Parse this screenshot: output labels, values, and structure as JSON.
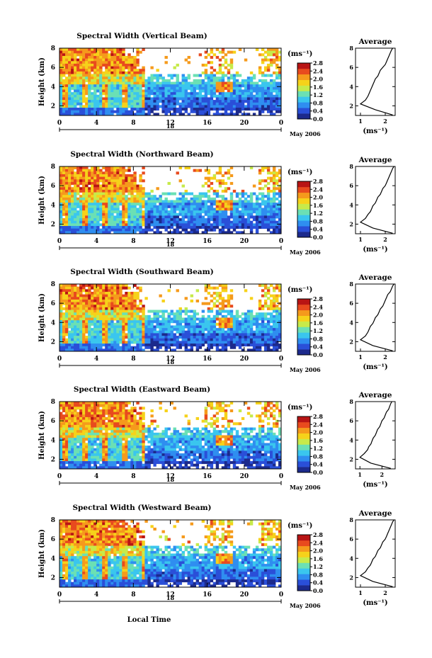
{
  "figure": {
    "xlabel": "Local Time",
    "colorbar_unit": "(ms⁻¹)",
    "avg_title": "Average",
    "avg_unit": "(ms⁻¹)",
    "date_label": "May 2006",
    "day_label": "18"
  },
  "colors": {
    "scale": [
      "#1c2a8c",
      "#2a4fd8",
      "#2f8ef0",
      "#3ac6ee",
      "#6be0b4",
      "#c7ea4a",
      "#f6d21a",
      "#f59a1c",
      "#e84a1e",
      "#b81414"
    ]
  },
  "chart_data": [
    {
      "type": "heatmap",
      "title": "Spectral Width (Vertical Beam)",
      "ylabel": "Height (km)",
      "x_ticks": [
        "0",
        "4",
        "8",
        "12",
        "16",
        "20",
        "0"
      ],
      "y_ticks": [
        "2",
        "4",
        "6",
        "8"
      ],
      "ylim": [
        1,
        8
      ],
      "colorbar_ticks": [
        "2.8",
        "2.4",
        "2.0",
        "1.6",
        "1.2",
        "0.8",
        "0.4",
        "0.0"
      ],
      "colorbar_range": [
        0,
        2.8
      ],
      "average": {
        "x_ticks": [
          "1",
          "2"
        ],
        "y_ticks": [
          "2",
          "4",
          "6",
          "8"
        ],
        "xlim": [
          0.8,
          2.4
        ],
        "ylim": [
          1,
          8
        ],
        "x": [
          2.3,
          1.6,
          1.0,
          1.2,
          1.3,
          1.35,
          1.4,
          1.45,
          1.5,
          1.55,
          1.6,
          1.7,
          1.75,
          1.8,
          1.9,
          2.0,
          2.05,
          2.1,
          2.15,
          2.2,
          2.25,
          2.3
        ],
        "y": [
          1.05,
          1.6,
          2.2,
          2.6,
          3.0,
          3.3,
          3.6,
          3.9,
          4.2,
          4.5,
          4.8,
          5.1,
          5.4,
          5.7,
          6.0,
          6.3,
          6.6,
          6.9,
          7.2,
          7.5,
          7.8,
          8.0
        ]
      }
    },
    {
      "type": "heatmap",
      "title": "Spectral Width (Northward Beam)",
      "ylabel": "Height (km)",
      "x_ticks": [
        "0",
        "4",
        "8",
        "12",
        "16",
        "20",
        "0"
      ],
      "y_ticks": [
        "2",
        "4",
        "6",
        "8"
      ],
      "ylim": [
        1,
        8
      ],
      "colorbar_ticks": [
        "2.8",
        "2.4",
        "2.0",
        "1.6",
        "1.2",
        "0.8",
        "0.4",
        "0.0"
      ],
      "colorbar_range": [
        0,
        2.8
      ],
      "average": {
        "x_ticks": [
          "1",
          "2"
        ],
        "y_ticks": [
          "2",
          "4",
          "6",
          "8"
        ],
        "xlim": [
          0.8,
          2.4
        ],
        "ylim": [
          1,
          8
        ],
        "x": [
          2.3,
          1.5,
          1.0,
          1.2,
          1.3,
          1.4,
          1.45,
          1.5,
          1.6,
          1.65,
          1.7,
          1.8,
          1.85,
          1.9,
          2.0,
          2.05,
          2.1,
          2.15,
          2.2,
          2.25,
          2.3,
          2.35
        ],
        "y": [
          1.05,
          1.6,
          2.2,
          2.6,
          3.0,
          3.3,
          3.6,
          3.9,
          4.2,
          4.5,
          4.8,
          5.1,
          5.4,
          5.7,
          6.0,
          6.3,
          6.6,
          6.9,
          7.2,
          7.5,
          7.8,
          8.0
        ]
      }
    },
    {
      "type": "heatmap",
      "title": "Spectral Width (Southward Beam)",
      "ylabel": "Height (km)",
      "x_ticks": [
        "0",
        "4",
        "8",
        "12",
        "16",
        "20",
        "0"
      ],
      "y_ticks": [
        "2",
        "4",
        "6",
        "8"
      ],
      "ylim": [
        1,
        8
      ],
      "colorbar_ticks": [
        "2.8",
        "2.4",
        "2.0",
        "1.6",
        "1.2",
        "0.8",
        "0.4",
        "0.0"
      ],
      "colorbar_range": [
        0,
        2.8
      ],
      "average": {
        "x_ticks": [
          "1",
          "2"
        ],
        "y_ticks": [
          "2",
          "4",
          "6",
          "8"
        ],
        "xlim": [
          0.8,
          2.4
        ],
        "ylim": [
          1,
          8
        ],
        "x": [
          2.3,
          1.5,
          1.0,
          1.2,
          1.3,
          1.35,
          1.4,
          1.5,
          1.55,
          1.6,
          1.7,
          1.75,
          1.8,
          1.9,
          1.95,
          2.0,
          2.05,
          2.1,
          2.2,
          2.25,
          2.3,
          2.35
        ],
        "y": [
          1.05,
          1.6,
          2.2,
          2.6,
          3.0,
          3.3,
          3.6,
          3.9,
          4.2,
          4.5,
          4.8,
          5.1,
          5.4,
          5.7,
          6.0,
          6.3,
          6.6,
          6.9,
          7.2,
          7.5,
          7.8,
          8.0
        ]
      }
    },
    {
      "type": "heatmap",
      "title": "Spectral Width (Eastward Beam)",
      "ylabel": "Height (km)",
      "x_ticks": [
        "0",
        "4",
        "8",
        "12",
        "16",
        "20",
        "0"
      ],
      "y_ticks": [
        "2",
        "4",
        "6",
        "8"
      ],
      "ylim": [
        1,
        8
      ],
      "colorbar_ticks": [
        "2.8",
        "2.4",
        "2.0",
        "1.6",
        "1.2",
        "0.8",
        "0.4",
        "0.0"
      ],
      "colorbar_range": [
        0,
        2.8
      ],
      "average": {
        "x_ticks": [
          "1",
          "2"
        ],
        "y_ticks": [
          "2",
          "4",
          "6",
          "8"
        ],
        "xlim": [
          0.8,
          2.6
        ],
        "ylim": [
          1,
          8
        ],
        "x": [
          2.4,
          1.5,
          1.0,
          1.2,
          1.35,
          1.4,
          1.5,
          1.55,
          1.6,
          1.7,
          1.75,
          1.8,
          1.9,
          1.95,
          2.0,
          2.1,
          2.15,
          2.2,
          2.3,
          2.35,
          2.4,
          2.45
        ],
        "y": [
          1.05,
          1.6,
          2.2,
          2.6,
          3.0,
          3.3,
          3.6,
          3.9,
          4.2,
          4.5,
          4.8,
          5.1,
          5.4,
          5.7,
          6.0,
          6.3,
          6.6,
          6.9,
          7.2,
          7.5,
          7.8,
          8.0
        ]
      }
    },
    {
      "type": "heatmap",
      "title": "Spectral Width (Westward Beam)",
      "ylabel": "Height (km)",
      "x_ticks": [
        "0",
        "4",
        "8",
        "12",
        "16",
        "20",
        "0"
      ],
      "y_ticks": [
        "2",
        "4",
        "6",
        "8"
      ],
      "ylim": [
        1,
        8
      ],
      "colorbar_ticks": [
        "2.8",
        "2.4",
        "2.0",
        "1.6",
        "1.2",
        "0.8",
        "0.4",
        "0.0"
      ],
      "colorbar_range": [
        0,
        2.8
      ],
      "average": {
        "x_ticks": [
          "1",
          "2"
        ],
        "y_ticks": [
          "2",
          "4",
          "6",
          "8"
        ],
        "xlim": [
          0.8,
          2.4
        ],
        "ylim": [
          1,
          8
        ],
        "x": [
          2.3,
          1.5,
          1.0,
          1.2,
          1.3,
          1.4,
          1.45,
          1.5,
          1.6,
          1.65,
          1.7,
          1.8,
          1.85,
          1.9,
          2.0,
          2.05,
          2.1,
          2.15,
          2.2,
          2.25,
          2.3,
          2.35
        ],
        "y": [
          1.05,
          1.6,
          2.2,
          2.6,
          3.0,
          3.3,
          3.6,
          3.9,
          4.2,
          4.5,
          4.8,
          5.1,
          5.4,
          5.7,
          6.0,
          6.3,
          6.6,
          6.9,
          7.2,
          7.5,
          7.8,
          8.0
        ]
      }
    }
  ]
}
